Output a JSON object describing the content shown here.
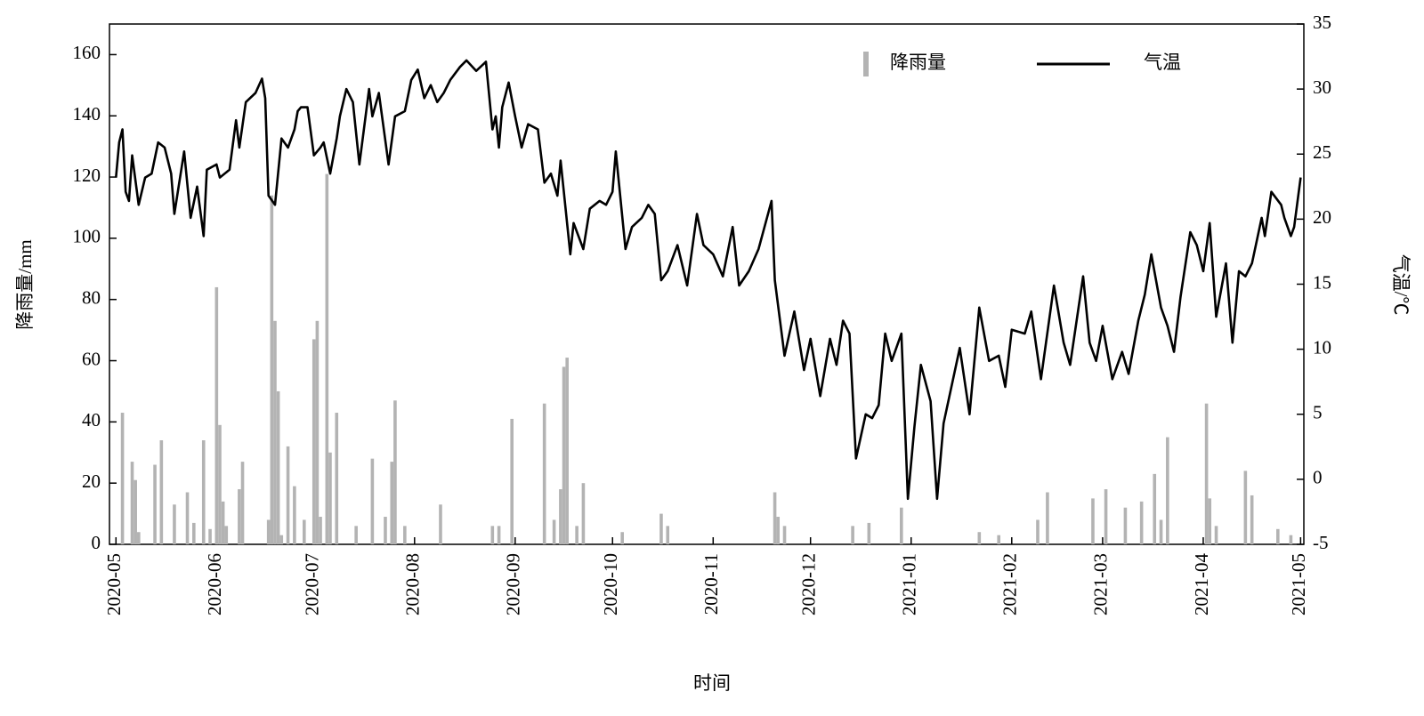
{
  "chart_data": {
    "type": "bar",
    "x_label": "时间",
    "y_label": "降雨量/mm",
    "y2_label": "气温/℃",
    "xlim": [
      -2,
      366
    ],
    "xticks": [
      {
        "value": 0,
        "label": "2020-05"
      },
      {
        "value": 31,
        "label": "2020-06"
      },
      {
        "value": 61,
        "label": "2020-07"
      },
      {
        "value": 92,
        "label": "2020-08"
      },
      {
        "value": 123,
        "label": "2020-09"
      },
      {
        "value": 153,
        "label": "2020-10"
      },
      {
        "value": 184,
        "label": "2020-11"
      },
      {
        "value": 214,
        "label": "2020-12"
      },
      {
        "value": 245,
        "label": "2021-01"
      },
      {
        "value": 276,
        "label": "2021-02"
      },
      {
        "value": 304,
        "label": "2021-03"
      },
      {
        "value": 335,
        "label": "2021-04"
      },
      {
        "value": 365,
        "label": "2021-05"
      }
    ],
    "ylim": [
      0,
      170
    ],
    "yticks": [
      0,
      20,
      40,
      60,
      80,
      100,
      120,
      140,
      160
    ],
    "y2lim": [
      -5,
      35
    ],
    "y2ticks": [
      -5,
      0,
      5,
      10,
      15,
      20,
      25,
      30,
      35
    ],
    "legend": "top-right",
    "series": [
      {
        "name": "降雨量",
        "type": "bar",
        "color": "#b3b3b3",
        "x": [
          2,
          5,
          6,
          7,
          12,
          14,
          18,
          22,
          24,
          27,
          29,
          31,
          32,
          33,
          34,
          38,
          39,
          47,
          48,
          49,
          50,
          51,
          53,
          55,
          58,
          61,
          62,
          63,
          65,
          66,
          68,
          74,
          79,
          83,
          85,
          86,
          89,
          100,
          116,
          118,
          122,
          132,
          135,
          137,
          138,
          139,
          142,
          144,
          156,
          168,
          170,
          203,
          204,
          206,
          227,
          232,
          242,
          266,
          272,
          284,
          287,
          301,
          305,
          311,
          316,
          320,
          322,
          324,
          336,
          337,
          339,
          348,
          350,
          358,
          362
        ],
        "values": [
          43,
          27,
          21,
          4,
          26,
          34,
          13,
          17,
          7,
          34,
          5,
          84,
          39,
          14,
          6,
          18,
          27,
          8,
          114,
          73,
          50,
          3,
          32,
          19,
          8,
          67,
          73,
          9,
          121,
          30,
          43,
          6,
          28,
          9,
          27,
          47,
          6,
          13,
          6,
          6,
          41,
          46,
          8,
          18,
          58,
          61,
          6,
          20,
          4,
          10,
          6,
          17,
          9,
          6,
          6,
          7,
          12,
          4,
          3,
          8,
          17,
          15,
          18,
          12,
          14,
          23,
          8,
          35,
          46,
          15,
          6,
          24,
          16,
          5,
          3
        ]
      },
      {
        "name": "气温",
        "type": "line",
        "color": "#000000",
        "axis": "y2",
        "x": [
          0,
          1,
          2,
          3,
          4,
          5,
          7,
          9,
          11,
          13,
          15,
          17,
          18,
          21,
          23,
          25,
          27,
          28,
          31,
          32,
          35,
          37,
          38,
          40,
          43,
          45,
          46,
          47,
          49,
          51,
          53,
          55,
          56,
          57,
          59,
          61,
          63,
          64,
          66,
          68,
          69,
          71,
          73,
          75,
          78,
          79,
          81,
          84,
          86,
          89,
          91,
          93,
          95,
          97,
          99,
          101,
          103,
          106,
          108,
          111,
          114,
          116,
          117,
          118,
          119,
          121,
          123,
          125,
          127,
          130,
          132,
          134,
          136,
          137,
          140,
          141,
          144,
          146,
          149,
          151,
          153,
          154,
          157,
          159,
          162,
          164,
          166,
          168,
          170,
          173,
          176,
          179,
          181,
          184,
          187,
          190,
          192,
          195,
          198,
          202,
          203,
          206,
          209,
          212,
          214,
          217,
          220,
          222,
          224,
          226,
          228,
          231,
          233,
          235,
          237,
          239,
          242,
          244,
          246,
          248,
          251,
          253,
          255,
          260,
          263,
          266,
          269,
          272,
          274,
          276,
          280,
          282,
          285,
          289,
          292,
          294,
          298,
          300,
          302,
          304,
          307,
          310,
          312,
          315,
          317,
          319,
          322,
          324,
          326,
          328,
          331,
          333,
          335,
          337,
          339,
          342,
          344,
          346,
          348,
          350,
          353,
          354,
          356,
          359,
          360,
          362,
          363,
          365
        ],
        "values": [
          23.2,
          25.9,
          26.9,
          22.1,
          21.4,
          24.9,
          21.1,
          23.2,
          23.5,
          25.9,
          25.5,
          23.5,
          20.4,
          25.2,
          20.1,
          22.5,
          18.7,
          23.8,
          24.2,
          23.2,
          23.8,
          27.6,
          25.5,
          29.0,
          29.7,
          30.8,
          29.3,
          21.8,
          21.1,
          26.2,
          25.5,
          26.9,
          28.3,
          28.6,
          28.6,
          24.9,
          25.5,
          25.9,
          23.5,
          26.2,
          27.9,
          30.0,
          29.0,
          24.2,
          30.0,
          27.9,
          29.7,
          24.2,
          27.9,
          28.3,
          30.7,
          31.5,
          29.3,
          30.3,
          29.0,
          29.7,
          30.7,
          31.7,
          32.2,
          31.4,
          32.1,
          26.9,
          27.9,
          25.5,
          28.6,
          30.5,
          27.9,
          25.5,
          27.3,
          26.9,
          22.8,
          23.5,
          21.8,
          24.5,
          17.3,
          19.7,
          17.7,
          20.8,
          21.4,
          21.1,
          22.1,
          25.2,
          17.7,
          19.4,
          20.1,
          21.1,
          20.4,
          15.3,
          16.0,
          18.0,
          14.9,
          20.4,
          18.0,
          17.3,
          15.6,
          19.4,
          14.9,
          16.0,
          17.7,
          21.4,
          15.3,
          9.5,
          12.9,
          8.4,
          10.8,
          6.4,
          10.8,
          8.8,
          12.2,
          11.2,
          1.6,
          5.0,
          4.7,
          5.7,
          11.2,
          9.1,
          11.2,
          -1.5,
          4.0,
          8.8,
          6.0,
          -1.5,
          4.3,
          10.1,
          5.0,
          13.2,
          9.1,
          9.5,
          7.1,
          11.5,
          11.2,
          12.9,
          7.7,
          14.9,
          10.5,
          8.8,
          15.6,
          10.5,
          9.1,
          11.8,
          7.7,
          9.8,
          8.1,
          12.2,
          14.2,
          17.3,
          13.2,
          11.8,
          9.8,
          14.0,
          19.0,
          18.0,
          16.0,
          19.7,
          12.5,
          16.6,
          10.5,
          16.0,
          15.6,
          16.6,
          20.1,
          18.7,
          22.1,
          21.1,
          20.1,
          18.7,
          19.4,
          23.2
        ]
      }
    ]
  }
}
